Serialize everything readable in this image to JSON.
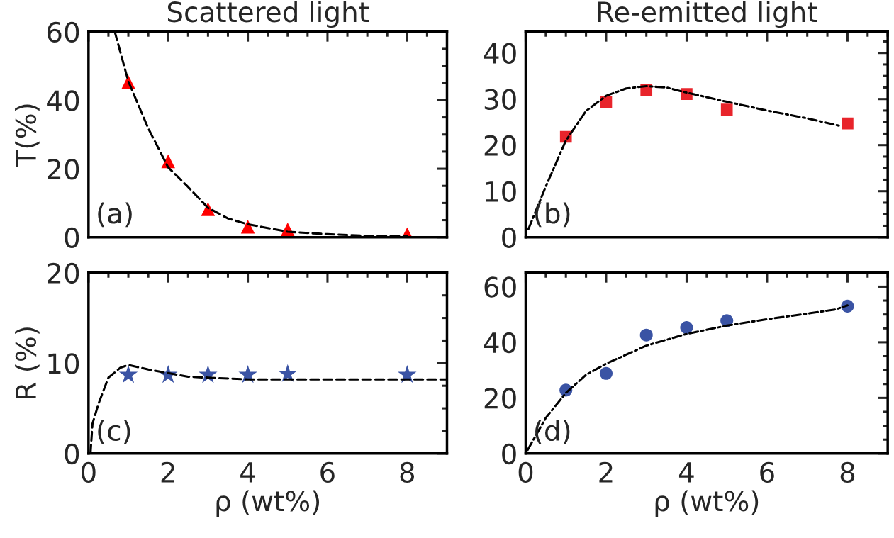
{
  "chart_data": [
    {
      "type": "scatter",
      "title": "Scattered light",
      "ylabel": "T(%)",
      "xlim": [
        0,
        9
      ],
      "xticks": [
        0,
        2,
        4,
        6,
        8
      ],
      "ylim": [
        0,
        60
      ],
      "yticks": [
        0,
        20,
        40,
        60
      ],
      "tick_labels": "y",
      "annotations": [
        "(a)"
      ],
      "series": [
        {
          "marker": "triangle",
          "color": "#ff0000",
          "x": [
            1,
            2,
            3,
            4,
            5,
            8
          ],
          "values": [
            45.3,
            22.2,
            8.2,
            3.1,
            2.3,
            0.9
          ]
        },
        {
          "type": "line",
          "line_style": "dashed",
          "color": "#000000",
          "x": [
            0.66,
            1,
            1.5,
            2,
            2.5,
            3,
            3.5,
            4,
            5,
            6,
            7,
            8
          ],
          "values": [
            60,
            45.5,
            31.8,
            20.4,
            14.7,
            8.6,
            5.5,
            3.8,
            1.6,
            0.9,
            0.4,
            0.3
          ]
        }
      ]
    },
    {
      "type": "scatter",
      "title": "Re-emitted light",
      "xlim": [
        0,
        9
      ],
      "xticks": [
        0,
        2,
        4,
        6,
        8
      ],
      "ylim": [
        0,
        44.6
      ],
      "yticks": [
        0,
        10,
        20,
        30,
        40
      ],
      "tick_labels": "y",
      "annotations": [
        "(b)"
      ],
      "series": [
        {
          "marker": "square",
          "color": "#e8242b",
          "x": [
            1,
            2,
            3,
            4,
            5,
            8
          ],
          "values": [
            21.8,
            29.4,
            32.0,
            31.1,
            27.7,
            24.7
          ]
        },
        {
          "type": "line",
          "line_style": "dashdot",
          "color": "#000000",
          "x": [
            0.07,
            0.5,
            1,
            1.5,
            2,
            2.5,
            3,
            3.5,
            4,
            5,
            6,
            7,
            7.8
          ],
          "values": [
            1.8,
            11,
            21,
            27.4,
            30.7,
            32.3,
            32.8,
            32.5,
            31.4,
            29.4,
            27.5,
            25.8,
            24.2
          ]
        }
      ]
    },
    {
      "type": "scatter",
      "xlabel": "ρ (wt%)",
      "ylabel": "R (%)",
      "xlim": [
        0,
        9
      ],
      "xticks": [
        0,
        2,
        4,
        6,
        8
      ],
      "ylim": [
        0,
        20
      ],
      "yticks": [
        0,
        10,
        20
      ],
      "annotations": [
        "(c)"
      ],
      "series": [
        {
          "marker": "star",
          "color": "#3a53a4",
          "x": [
            1,
            2,
            3,
            4,
            5,
            8
          ],
          "values": [
            8.7,
            8.7,
            8.7,
            8.7,
            8.8,
            8.7
          ]
        },
        {
          "type": "line",
          "line_style": "dashed",
          "color": "#000000",
          "x": [
            0.05,
            0.1,
            0.25,
            0.5,
            0.8,
            1,
            1.5,
            2,
            2.5,
            3,
            4,
            9
          ],
          "values": [
            0,
            3.3,
            5.5,
            8.4,
            9.5,
            9.8,
            9.3,
            8.9,
            8.5,
            8.4,
            8.2,
            8.2
          ]
        }
      ]
    },
    {
      "type": "scatter",
      "xlabel": "ρ (wt%)",
      "xlim": [
        0,
        9
      ],
      "xticks": [
        0,
        2,
        4,
        6,
        8
      ],
      "ylim": [
        0,
        65
      ],
      "yticks": [
        0,
        20,
        40,
        60
      ],
      "annotations": [
        "(d)"
      ],
      "series": [
        {
          "marker": "circle",
          "color": "#3a53a4",
          "x": [
            1,
            2,
            3,
            4,
            5,
            8
          ],
          "values": [
            22.8,
            28.8,
            42.6,
            45.3,
            47.8,
            53.0
          ]
        },
        {
          "type": "line",
          "line_style": "dashdot",
          "color": "#000000",
          "x": [
            0.05,
            0.5,
            1,
            1.5,
            2,
            3,
            4,
            5,
            6,
            7,
            7.7,
            8
          ],
          "values": [
            1.3,
            12.8,
            21.8,
            28.3,
            32.3,
            38.8,
            43,
            46,
            48.3,
            50.3,
            51.8,
            53.3
          ]
        }
      ]
    }
  ]
}
